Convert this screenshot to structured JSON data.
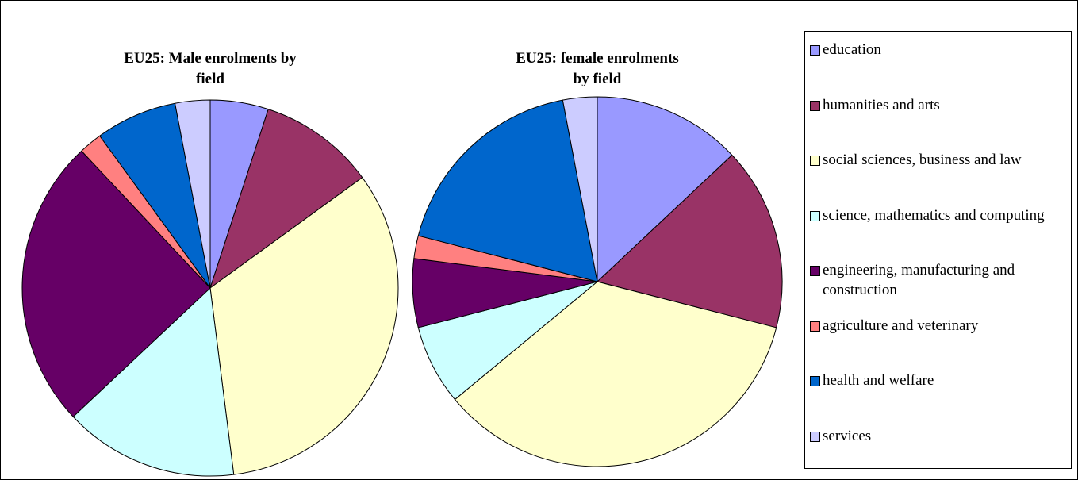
{
  "chart_data": {
    "type": "pie",
    "categories": [
      "education",
      "humanities and arts",
      "social sciences, business and law",
      "science, mathematics and computing",
      "engineering, manufacturing and construction",
      "agriculture and veterinary",
      "health and welfare",
      "services"
    ],
    "colors": [
      "#9999ff",
      "#993366",
      "#ffffcc",
      "#ccffff",
      "#660066",
      "#ff8080",
      "#0066cc",
      "#ccccff"
    ],
    "series": [
      {
        "name": "EU25: Male enrolments by field",
        "values": [
          5,
          10,
          33,
          15,
          25,
          2,
          7,
          3
        ]
      },
      {
        "name": "EU25: female enrolments by field",
        "values": [
          13,
          16,
          35,
          7,
          6,
          2,
          18,
          3
        ]
      }
    ]
  }
}
